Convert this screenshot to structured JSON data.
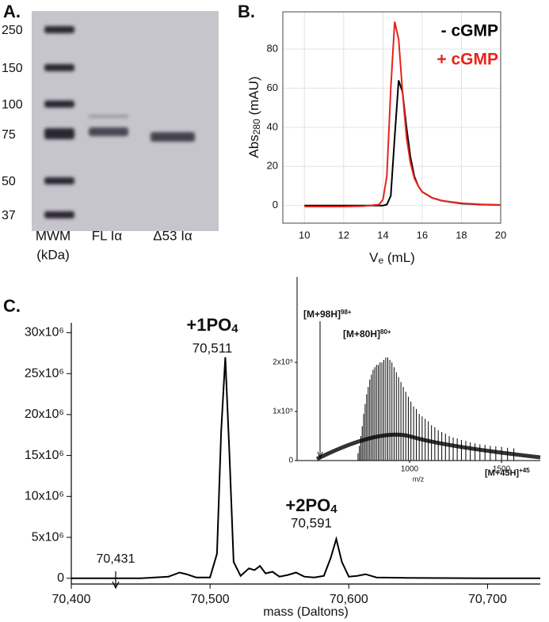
{
  "gel": {
    "panel_label": "A.",
    "ladder_labels": [
      250,
      150,
      100,
      75,
      50,
      37
    ],
    "lane_labels": [
      "MWM",
      "FL Iα",
      "Δ53 Iα"
    ],
    "unit_label": "(kDa)"
  },
  "chart_data": [
    {
      "type": "line",
      "panel_label": "B.",
      "x": [
        10,
        11,
        12,
        13,
        13.8,
        14.0,
        14.2,
        14.4,
        14.6,
        14.8,
        15.0,
        15.2,
        15.4,
        15.6,
        15.8,
        16.0,
        16.5,
        17,
        18,
        19,
        20
      ],
      "series": [
        {
          "name": "- cGMP",
          "color": "#000000",
          "values": [
            0,
            0,
            0,
            0,
            0,
            0,
            0.5,
            5,
            35,
            64,
            58,
            40,
            25,
            15,
            10,
            7,
            4,
            2.5,
            1,
            0.5,
            0.3
          ]
        },
        {
          "name": "+ cGMP",
          "color": "#e8231c",
          "values": [
            -0.5,
            -0.5,
            -0.5,
            -0.3,
            0.5,
            3,
            15,
            60,
            94,
            85,
            58,
            35,
            22,
            14,
            10,
            7,
            4,
            2.5,
            1.2,
            0.6,
            0.3
          ]
        }
      ],
      "xlim": [
        8.9,
        20
      ],
      "ylim": [
        -9,
        99
      ],
      "xticks": [
        10,
        12,
        14,
        16,
        18,
        20
      ],
      "yticks": [
        0,
        20,
        40,
        60,
        80
      ],
      "grid": true,
      "xlabel_parts": [
        "V",
        "e",
        " (mL)"
      ],
      "ylabel_parts": [
        "Abs",
        "280",
        " (mAU)"
      ],
      "legend": "top-right"
    },
    {
      "type": "line",
      "panel_label": "C.",
      "x": [
        70400,
        70450,
        70470,
        70478,
        70483,
        70490,
        70500,
        70505,
        70508,
        70511,
        70514,
        70517,
        70522,
        70528,
        70532,
        70536,
        70540,
        70545,
        70550,
        70556,
        70562,
        70568,
        70575,
        70582,
        70587,
        70591,
        70595,
        70600,
        70606,
        70612,
        70620,
        70640,
        70700,
        70738
      ],
      "series": [
        {
          "color": "#000000",
          "values": [
            0,
            0,
            200000,
            700000,
            500000,
            100000,
            100000,
            3000000,
            18000000,
            27000000,
            15000000,
            2000000,
            300000,
            1200000,
            1000000,
            1500000,
            600000,
            800000,
            200000,
            400000,
            700000,
            200000,
            100000,
            300000,
            2500000,
            4800000,
            2000000,
            200000,
            300000,
            500000,
            100000,
            50000,
            0,
            0
          ]
        }
      ],
      "xlim": [
        70400,
        70738
      ],
      "ylim": [
        -700000,
        31200000
      ],
      "xticks": [
        {
          "value": 70400,
          "label": "70,400"
        },
        {
          "value": 70500,
          "label": "70,500"
        },
        {
          "value": 70600,
          "label": "70,600"
        },
        {
          "value": 70700,
          "label": "70,700"
        }
      ],
      "yticks": [
        0,
        {
          "value": 5000000,
          "label": "5x10⁶"
        },
        {
          "value": 10000000,
          "label": "10x10⁶"
        },
        {
          "value": 15000000,
          "label": "15x10⁶"
        },
        {
          "value": 20000000,
          "label": "20x10⁶"
        },
        {
          "value": 25000000,
          "label": "25x10⁶"
        },
        {
          "value": 30000000,
          "label": "30x10⁶"
        }
      ],
      "xlabel": "mass (Daltons)",
      "annotations": [
        {
          "parts": [
            "+1PO",
            "4"
          ],
          "mass": "70,511"
        },
        {
          "parts": [
            "+2PO",
            "4"
          ],
          "mass": "70,591"
        },
        {
          "mass": "70,431"
        }
      ]
    },
    {
      "type": "stem",
      "x": [
        719.5,
        727.0,
        734.5,
        742.2,
        750.1,
        758.2,
        766.4,
        774.9,
        783.5,
        792.3,
        801.3,
        810.5,
        819.9,
        829.6,
        839.4,
        849.5,
        859.9,
        870.5,
        881.4,
        892.6,
        904.0,
        915.7,
        927.8,
        940.2,
        952.9,
        965.9,
        979.3,
        993.1,
        1007.3,
        1021.9,
        1036.9,
        1052.4,
        1068.4,
        1084.8,
        1101.8,
        1119.2,
        1137.3,
        1155.9,
        1175.2,
        1195.1,
        1215.7,
        1237.1,
        1259.1,
        1282.0,
        1305.8,
        1330.4,
        1356.0,
        1382.6,
        1410.2,
        1439.0,
        1469.0,
        1500.3,
        1532.9,
        1567.0
      ],
      "values": [
        15000,
        30000,
        50000,
        70000,
        95000,
        115000,
        135000,
        150000,
        165000,
        175000,
        185000,
        190000,
        195000,
        195000,
        200000,
        200000,
        205000,
        210000,
        210000,
        205000,
        200000,
        190000,
        180000,
        170000,
        160000,
        150000,
        140000,
        130000,
        120000,
        110000,
        105000,
        95000,
        90000,
        85000,
        80000,
        72000,
        68000,
        62000,
        58000,
        55000,
        50000,
        47000,
        45000,
        42000,
        40000,
        37000,
        35000,
        33000,
        32000,
        30000,
        29000,
        28000,
        26000,
        25000
      ],
      "color": "#000000",
      "xlim": [
        388,
        1711
      ],
      "ylim": [
        0,
        374000
      ],
      "xticks": [
        1000,
        1500
      ],
      "yticks": [
        0,
        {
          "value": 100000,
          "label": "1x10⁵"
        },
        {
          "value": 200000,
          "label": "2x10⁵"
        }
      ],
      "xlabel": "m/z",
      "annotations": [
        {
          "parts": [
            "[M+98H]",
            "98+"
          ]
        },
        {
          "parts": [
            "[M+80H]",
            "80+"
          ]
        },
        {
          "parts": [
            "[M+45H]",
            "+45"
          ]
        }
      ]
    }
  ]
}
